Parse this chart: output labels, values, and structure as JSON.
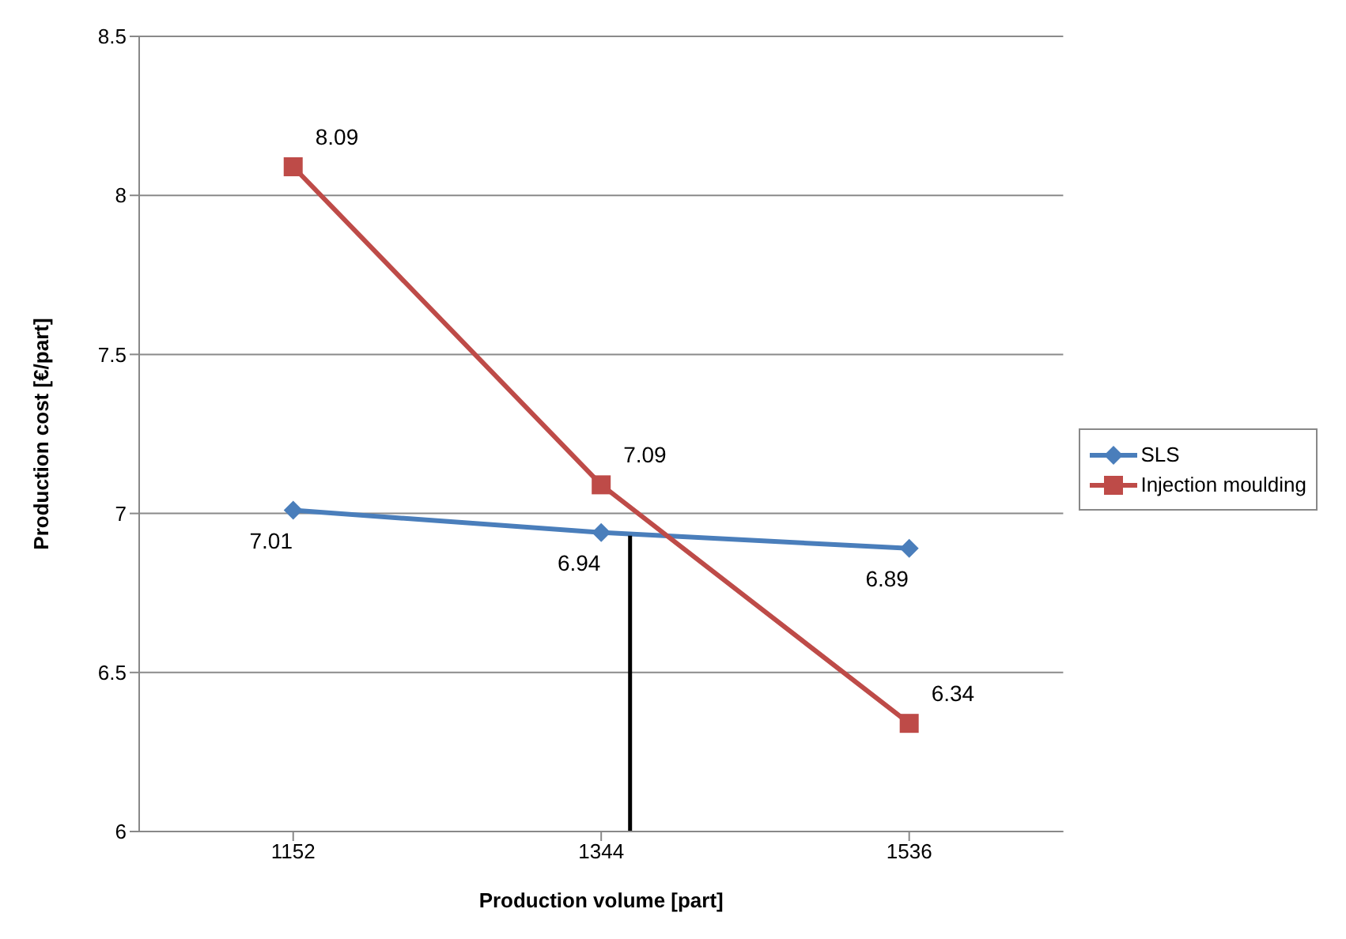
{
  "chart_data": {
    "type": "line",
    "xlabel": "Production volume [part]",
    "ylabel": "Production cost [€/part]",
    "x": [
      1152,
      1344,
      1536
    ],
    "xlim": [
      1056,
      1632
    ],
    "xticks": [
      1152,
      1344,
      1536
    ],
    "ylim": [
      6,
      8.5
    ],
    "yticks": [
      6,
      6.5,
      7,
      7.5,
      8,
      8.5
    ],
    "grid": "y",
    "legend": "right",
    "series": [
      {
        "name": "SLS",
        "color": "#4a7ebb",
        "values": [
          7.01,
          6.94,
          6.89
        ],
        "value_labels": [
          "7.01",
          "6.94",
          "6.89"
        ],
        "marker": "diamond"
      },
      {
        "name": "Injection moulding",
        "color": "#be4b48",
        "values": [
          8.09,
          7.09,
          6.34
        ],
        "value_labels": [
          "8.09",
          "7.09",
          "6.34"
        ],
        "marker": "square"
      },
      {
        "color": "#000000",
        "x": [
          1362,
          1362
        ],
        "values": [
          6,
          6.93
        ],
        "marker": "none"
      }
    ]
  }
}
